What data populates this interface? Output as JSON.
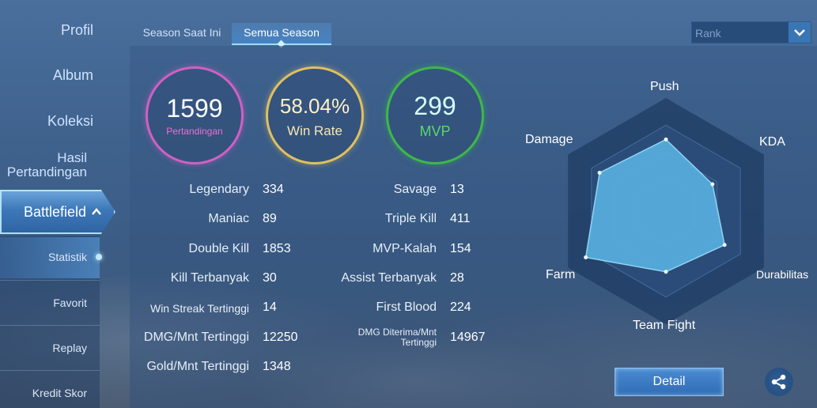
{
  "sidebar": {
    "items": [
      {
        "label": "Profil"
      },
      {
        "label": "Album"
      },
      {
        "label": "Koleksi"
      },
      {
        "label": "Hasil Pertandingan"
      }
    ],
    "battlefield_label": "Battlefield",
    "sub_items": [
      {
        "label": "Statistik",
        "active": true
      },
      {
        "label": "Favorit"
      },
      {
        "label": "Replay"
      },
      {
        "label": "Kredit Skor"
      }
    ]
  },
  "tabs": [
    {
      "label": "Season Saat Ini",
      "active": false
    },
    {
      "label": "Semua Season",
      "active": true
    }
  ],
  "rank_dropdown": {
    "value": "Rank"
  },
  "circles": {
    "matches": {
      "value": "1599",
      "label": "Pertandingan"
    },
    "win_rate": {
      "value": "58.04%",
      "label": "Win Rate"
    },
    "mvp": {
      "value": "299",
      "label": "MVP"
    }
  },
  "stats_left": [
    {
      "label": "Legendary",
      "value": "334"
    },
    {
      "label": "Maniac",
      "value": "89"
    },
    {
      "label": "Double Kill",
      "value": "1853"
    },
    {
      "label": "Kill Terbanyak",
      "value": "30"
    },
    {
      "label": "Win Streak Tertinggi",
      "value": "14"
    },
    {
      "label": "DMG/Mnt Tertinggi",
      "value": "12250"
    },
    {
      "label": "Gold/Mnt Tertinggi",
      "value": "1348"
    }
  ],
  "stats_right": [
    {
      "label": "Savage",
      "value": "13"
    },
    {
      "label": "Triple Kill",
      "value": "411"
    },
    {
      "label": "MVP-Kalah",
      "value": "154"
    },
    {
      "label": "Assist Terbanyak",
      "value": "28"
    },
    {
      "label": "First Blood",
      "value": "224"
    },
    {
      "label": "DMG Diterima/Mnt Tertinggi",
      "value": "14967"
    }
  ],
  "radar": {
    "labels": {
      "push": "Push",
      "kda": "KDA",
      "durability": "Durabilitas",
      "team_fight": "Team Fight",
      "farm": "Farm",
      "damage": "Damage"
    },
    "values": {
      "push": 0.72,
      "kda": 0.54,
      "durability": 0.68,
      "team_fight": 0.61,
      "farm": 0.93,
      "damage": 0.77
    },
    "fill_color": "#59b3e3"
  },
  "actions": {
    "detail_label": "Detail"
  },
  "colors": {
    "matches_ring": "#d060c4",
    "win_rate_ring": "#e0c060",
    "mvp_ring": "#3eb84a",
    "accent": "#4a8bd1"
  }
}
